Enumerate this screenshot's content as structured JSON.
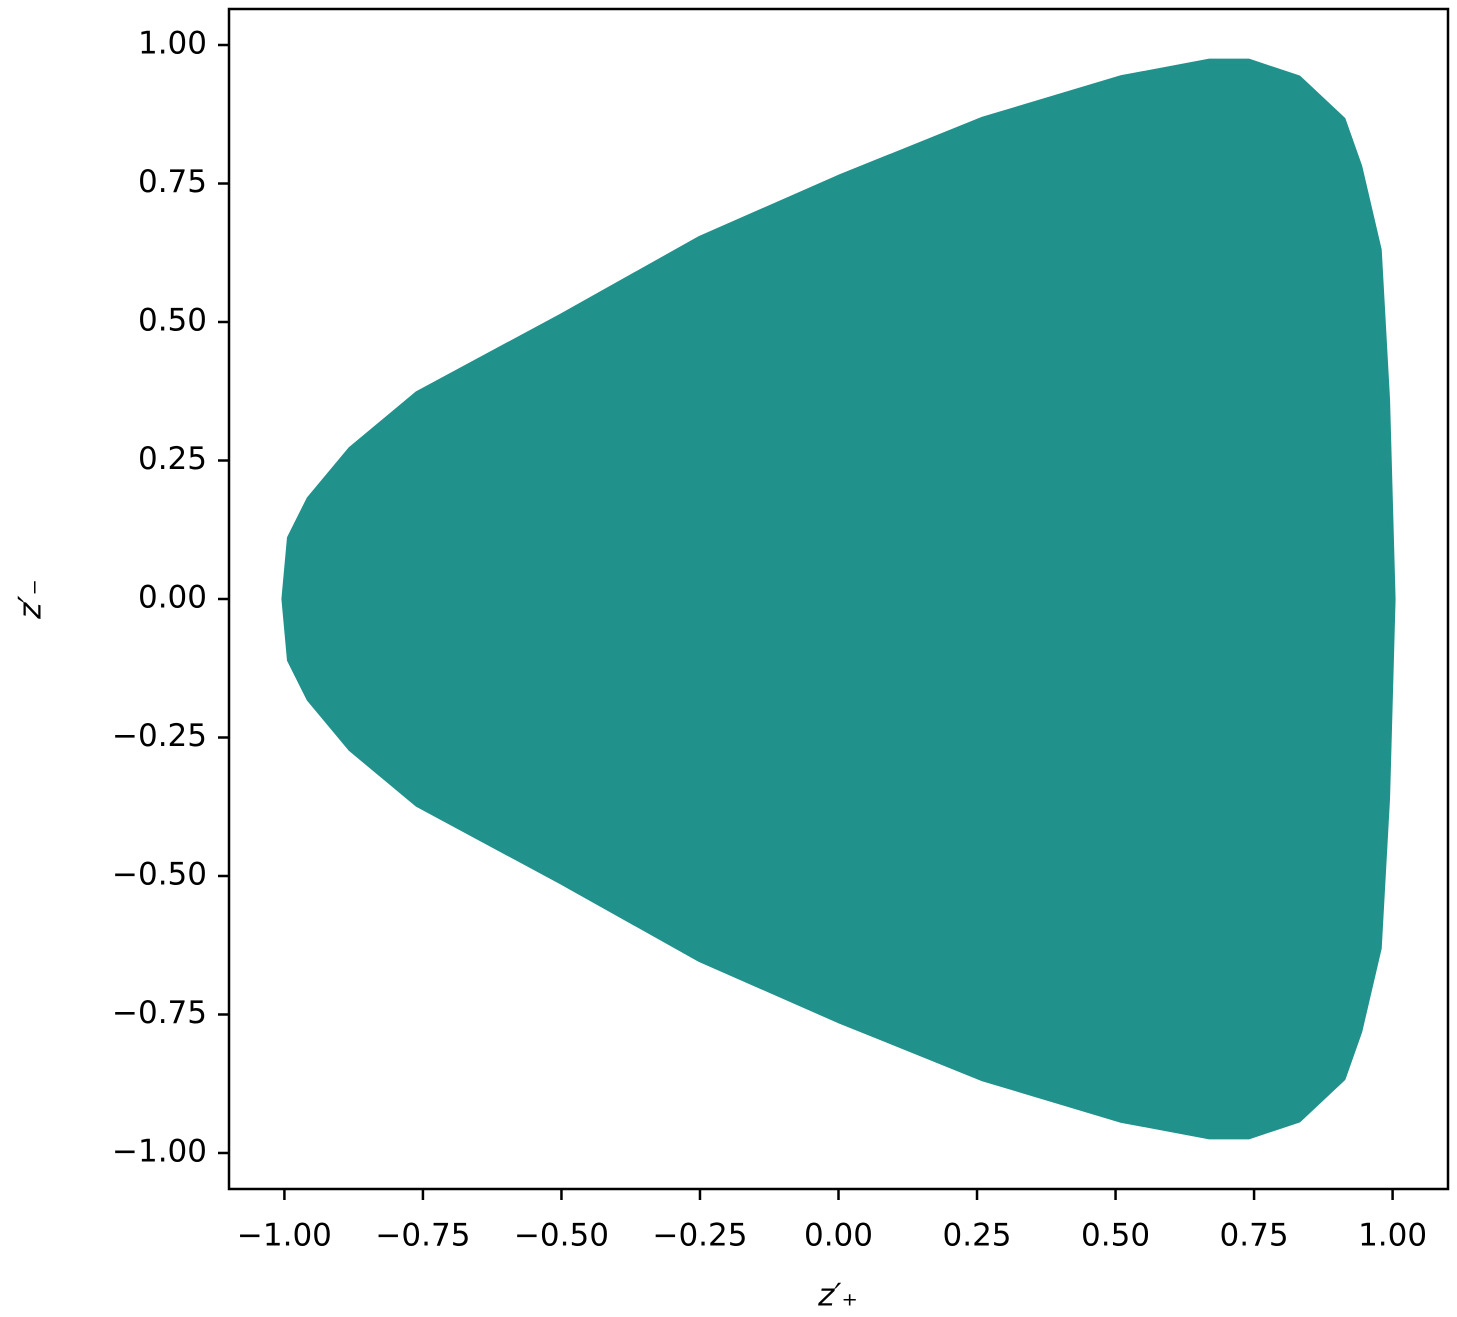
{
  "chart_data": {
    "type": "area",
    "color": "#21918c",
    "xlabel": "z′₊",
    "ylabel": "z′₋",
    "xlim": [
      -1.1,
      1.1
    ],
    "ylim": [
      -1.065,
      1.065
    ],
    "xticks": [
      {
        "value": -1,
        "label": "−1.00"
      },
      {
        "value": -0.75,
        "label": "−0.75"
      },
      {
        "value": -0.5,
        "label": "−0.50"
      },
      {
        "value": -0.25,
        "label": "−0.25"
      },
      {
        "value": 0,
        "label": "0.00"
      },
      {
        "value": 0.25,
        "label": "0.25"
      },
      {
        "value": 0.5,
        "label": "0.50"
      },
      {
        "value": 0.75,
        "label": "0.75"
      },
      {
        "value": 1,
        "label": "1.00"
      }
    ],
    "yticks": [
      {
        "value": -1,
        "label": "−1.00"
      },
      {
        "value": -0.75,
        "label": "−0.75"
      },
      {
        "value": -0.5,
        "label": "−0.50"
      },
      {
        "value": -0.25,
        "label": "−0.25"
      },
      {
        "value": 0,
        "label": "0.00"
      },
      {
        "value": 0.25,
        "label": "0.25"
      },
      {
        "value": 0.5,
        "label": "0.50"
      },
      {
        "value": 0.75,
        "label": "0.75"
      },
      {
        "value": 1,
        "label": "1.00"
      }
    ],
    "x": [
      -1.0,
      -0.99,
      -0.955,
      -0.88,
      -0.76,
      -0.5,
      -0.25,
      0.0,
      0.26,
      0.51,
      0.67,
      0.74,
      0.83,
      0.91,
      0.94,
      0.975,
      0.99,
      1.0,
      0.99,
      0.975,
      0.94,
      0.91,
      0.83,
      0.74,
      0.67,
      0.51,
      0.26,
      0.0,
      -0.25,
      -0.5,
      -0.76,
      -0.88,
      -0.955,
      -0.99
    ],
    "y": [
      0,
      0.11,
      0.18,
      0.27,
      0.37,
      0.51,
      0.65,
      0.76,
      0.865,
      0.94,
      0.97,
      0.97,
      0.94,
      0.865,
      0.78,
      0.63,
      0.36,
      0,
      -0.36,
      -0.63,
      -0.78,
      -0.865,
      -0.94,
      -0.97,
      -0.97,
      -0.94,
      -0.865,
      -0.76,
      -0.65,
      -0.51,
      -0.37,
      -0.27,
      -0.18,
      -0.11
    ]
  }
}
